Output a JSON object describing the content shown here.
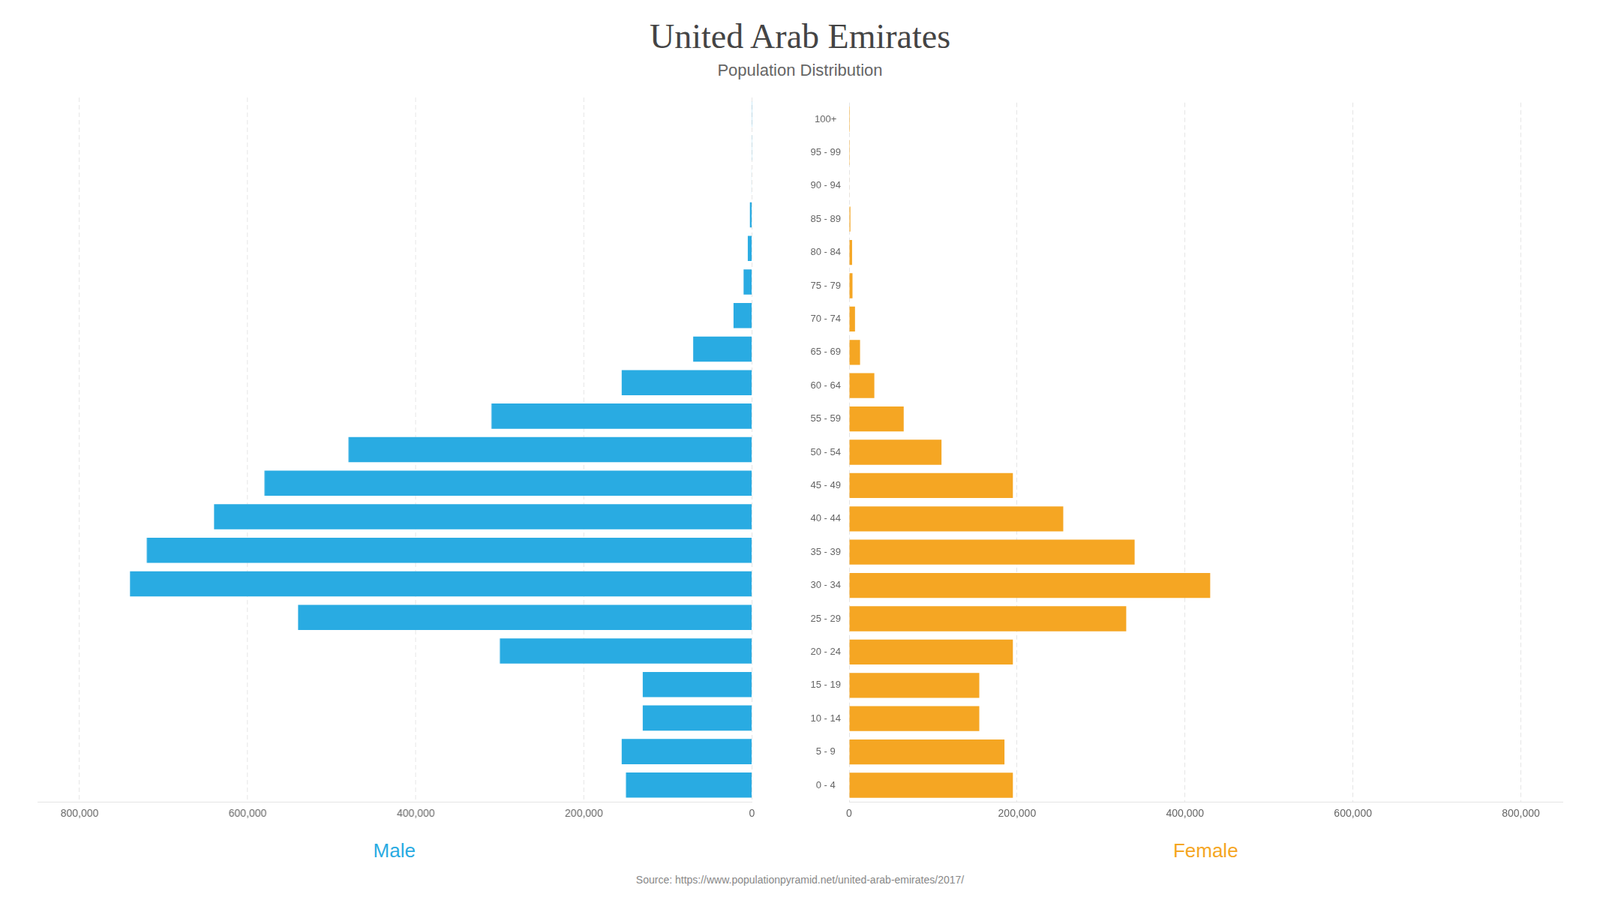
{
  "chart_data": {
    "type": "bar",
    "orientation": "horizontal",
    "title": "United Arab Emirates",
    "subtitle": "Population Distribution",
    "annotations": [
      "Source: https://www.populationpyramid.net/united-arab-emirates/2017/"
    ],
    "categories": [
      "0 - 4",
      "5 - 9",
      "10 - 14",
      "15 - 19",
      "20 - 24",
      "25 - 29",
      "30 - 34",
      "35 - 39",
      "40 - 44",
      "45 - 49",
      "50 - 54",
      "55 - 59",
      "60 - 64",
      "65 - 69",
      "70 - 74",
      "75 - 79",
      "80 - 84",
      "85 - 89",
      "90 - 94",
      "95 - 99",
      "100+"
    ],
    "series": [
      {
        "name": "Male",
        "color": "#29ABE2",
        "values": [
          150000,
          155000,
          130000,
          130000,
          300000,
          540000,
          740000,
          720000,
          640000,
          580000,
          480000,
          310000,
          155000,
          70000,
          22000,
          10000,
          5000,
          2500,
          500,
          150,
          50
        ]
      },
      {
        "name": "Female",
        "color": "#F5A623",
        "values": [
          195000,
          185000,
          155000,
          155000,
          195000,
          330000,
          430000,
          340000,
          255000,
          195000,
          110000,
          65000,
          30000,
          13000,
          7000,
          4000,
          3500,
          1500,
          400,
          100,
          30
        ]
      }
    ],
    "xlim": [
      0,
      850000
    ],
    "xticks": [
      0,
      {
        "value": 200000,
        "label": "200,000"
      },
      {
        "value": 400000,
        "label": "400,000"
      },
      {
        "value": 600000,
        "label": "600,000"
      },
      {
        "value": 800000,
        "label": "800,000"
      }
    ],
    "grid": true
  }
}
